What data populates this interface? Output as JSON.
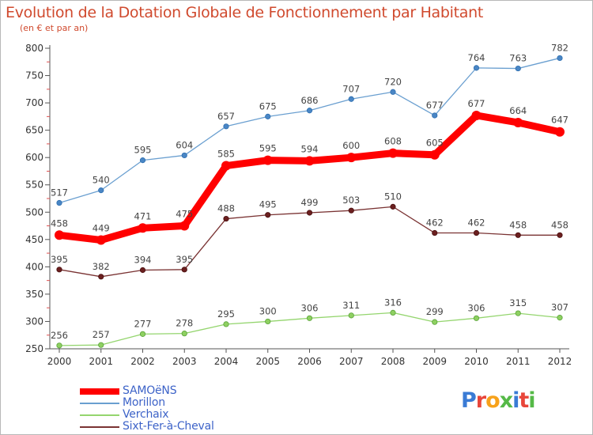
{
  "header": {
    "title": "Evolution de la Dotation Globale de Fonctionnement par Habitant",
    "subtitle": "(en € et par an)"
  },
  "logo": {
    "text": "Proxiti",
    "colors": [
      "#3a7bd5",
      "#e8463a",
      "#f7a21b",
      "#55b947",
      "#3a7bd5",
      "#e8463a",
      "#55b947"
    ]
  },
  "chart_data": {
    "type": "line",
    "x": [
      "2000",
      "2001",
      "2002",
      "2003",
      "2004",
      "2005",
      "2006",
      "2007",
      "2008",
      "2009",
      "2010",
      "2011",
      "2012"
    ],
    "ylim": [
      250,
      800
    ],
    "yticks": [
      250,
      300,
      350,
      400,
      450,
      500,
      550,
      600,
      650,
      700,
      750,
      800
    ],
    "grid": false,
    "legend_position": "bottom-left",
    "series": [
      {
        "name": "SAMOëNS",
        "color": "#ff0000",
        "values": [
          458,
          449,
          471,
          475,
          585,
          595,
          594,
          600,
          608,
          605,
          677,
          664,
          647
        ]
      },
      {
        "name": "Morillon",
        "color": "#6a9fd0",
        "values": [
          517,
          540,
          595,
          604,
          657,
          675,
          686,
          707,
          720,
          677,
          764,
          763,
          782
        ]
      },
      {
        "name": "Verchaix",
        "color": "#94d56e",
        "values": [
          256,
          257,
          277,
          278,
          295,
          300,
          306,
          311,
          316,
          299,
          306,
          315,
          307
        ]
      },
      {
        "name": "Sixt-Fer-à-Cheval",
        "color": "#7a3333",
        "values": [
          395,
          382,
          394,
          395,
          488,
          495,
          499,
          503,
          510,
          462,
          462,
          458,
          458
        ]
      }
    ]
  }
}
